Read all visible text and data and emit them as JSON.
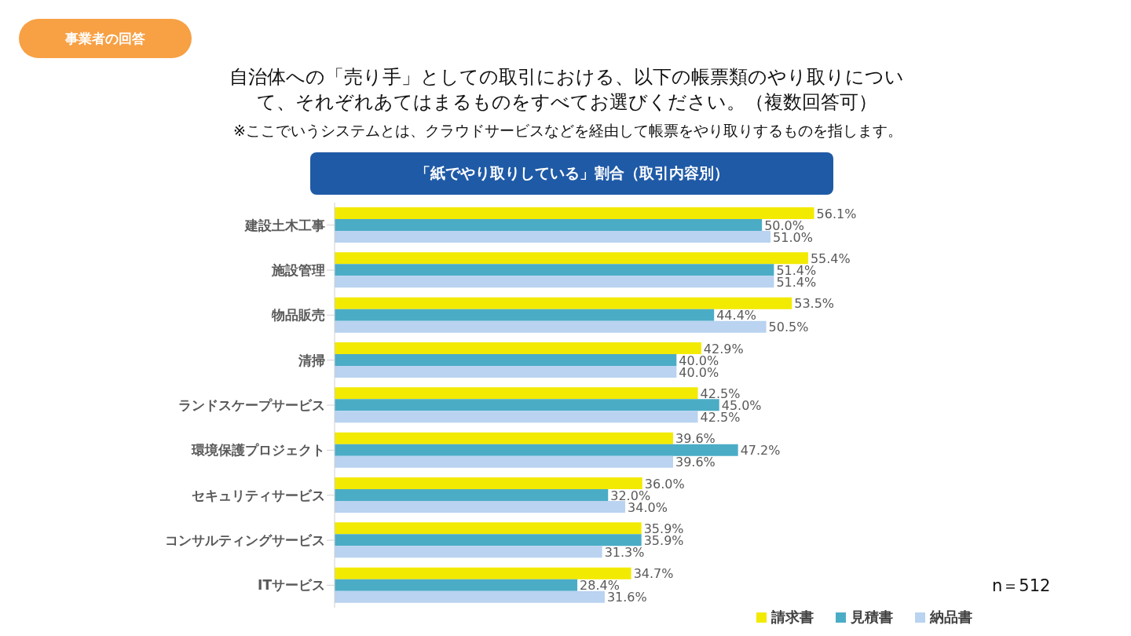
{
  "chart_data": {
    "type": "bar",
    "orientation": "horizontal",
    "title": "自治体への「売り手」としての取引における、以下の帳票類のやり取りについて、それぞれあてはまるものをすべてお選びください。（複数回答可）",
    "subtitle": "※ここでいうシステムとは、クラウドサービスなどを経由して帳票をやり取りするものを指します。",
    "annotations": [
      "事業者の回答",
      "「紙でやり取りしている」割合（取引内容別）",
      "n＝512"
    ],
    "categories": [
      "建設土木工事",
      "施設管理",
      "物品販売",
      "清掃",
      "ランドスケープサービス",
      "環境保護プロジェクト",
      "セキュリティサービス",
      "コンサルティングサービス",
      "ITサービス"
    ],
    "series": [
      {
        "name": "請求書",
        "color": "#f2ea00",
        "values": [
          56.1,
          55.4,
          53.5,
          42.9,
          42.5,
          39.6,
          36.0,
          35.9,
          34.7
        ],
        "value_labels": [
          "56.1%",
          "55.4%",
          "53.5%",
          "42.9%",
          "42.5%",
          "39.6%",
          "36.0%",
          "35.9%",
          "34.7%"
        ]
      },
      {
        "name": "見積書",
        "color": "#4bacc6",
        "values": [
          50.0,
          51.4,
          44.4,
          40.0,
          45.0,
          47.2,
          32.0,
          35.9,
          28.4
        ],
        "value_labels": [
          "50.0%",
          "51.4%",
          "44.4%",
          "40.0%",
          "45.0%",
          "47.2%",
          "32.0%",
          "35.9%",
          "28.4%"
        ]
      },
      {
        "name": "納品書",
        "color": "#b9d3f0",
        "values": [
          51.0,
          51.4,
          50.5,
          40.0,
          42.5,
          39.6,
          34.0,
          31.3,
          31.6
        ],
        "value_labels": [
          "51.0%",
          "51.4%",
          "50.5%",
          "40.0%",
          "42.5%",
          "39.6%",
          "34.0%",
          "31.3%",
          "31.6%"
        ]
      }
    ],
    "legend": "bottom",
    "grid": false
  }
}
